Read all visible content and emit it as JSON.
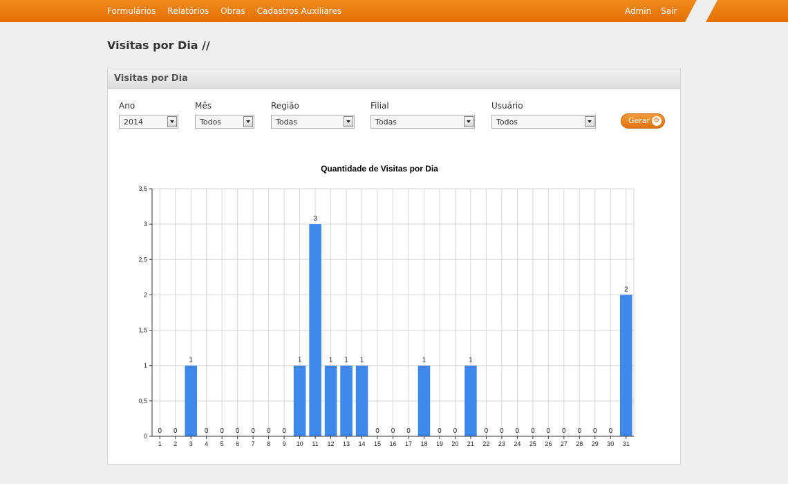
{
  "nav": {
    "items": [
      {
        "label": "Formulários"
      },
      {
        "label": "Relatórios"
      },
      {
        "label": "Obras"
      },
      {
        "label": "Cadastros Auxiliares"
      }
    ],
    "right": [
      {
        "label": "Admin"
      },
      {
        "label": "Sair"
      }
    ]
  },
  "page": {
    "title": "Visitas por Dia //"
  },
  "panel": {
    "title": "Visitas por Dia"
  },
  "filters": {
    "ano": {
      "label": "Ano",
      "value": "2014"
    },
    "mes": {
      "label": "Mês",
      "value": "Todos"
    },
    "regiao": {
      "label": "Região",
      "value": "Todas"
    },
    "filial": {
      "label": "Filial",
      "value": "Todas"
    },
    "usuario": {
      "label": "Usuário",
      "value": "Todos"
    }
  },
  "gerar": {
    "label": "Gerar",
    "icon": "gear-icon"
  },
  "colors": {
    "accent": "#e47006",
    "bar": "#3f88ec"
  },
  "chart_data": {
    "type": "bar",
    "title": "Quantidade de Visitas por Dia",
    "xlabel": "",
    "ylabel": "",
    "categories": [
      "1",
      "2",
      "3",
      "4",
      "5",
      "6",
      "7",
      "8",
      "9",
      "10",
      "11",
      "12",
      "13",
      "14",
      "15",
      "16",
      "17",
      "18",
      "19",
      "20",
      "21",
      "22",
      "23",
      "24",
      "25",
      "26",
      "27",
      "28",
      "29",
      "30",
      "31"
    ],
    "values": [
      0,
      0,
      1,
      0,
      0,
      0,
      0,
      0,
      0,
      1,
      3,
      1,
      1,
      1,
      0,
      0,
      0,
      1,
      0,
      0,
      1,
      0,
      0,
      0,
      0,
      0,
      0,
      0,
      0,
      0,
      2
    ],
    "ylim": [
      0,
      3.5
    ],
    "yticks": [
      "0",
      "0,5",
      "1",
      "1,5",
      "2",
      "2,5",
      "3",
      "3,5"
    ],
    "grid": true,
    "data_labels": true
  }
}
